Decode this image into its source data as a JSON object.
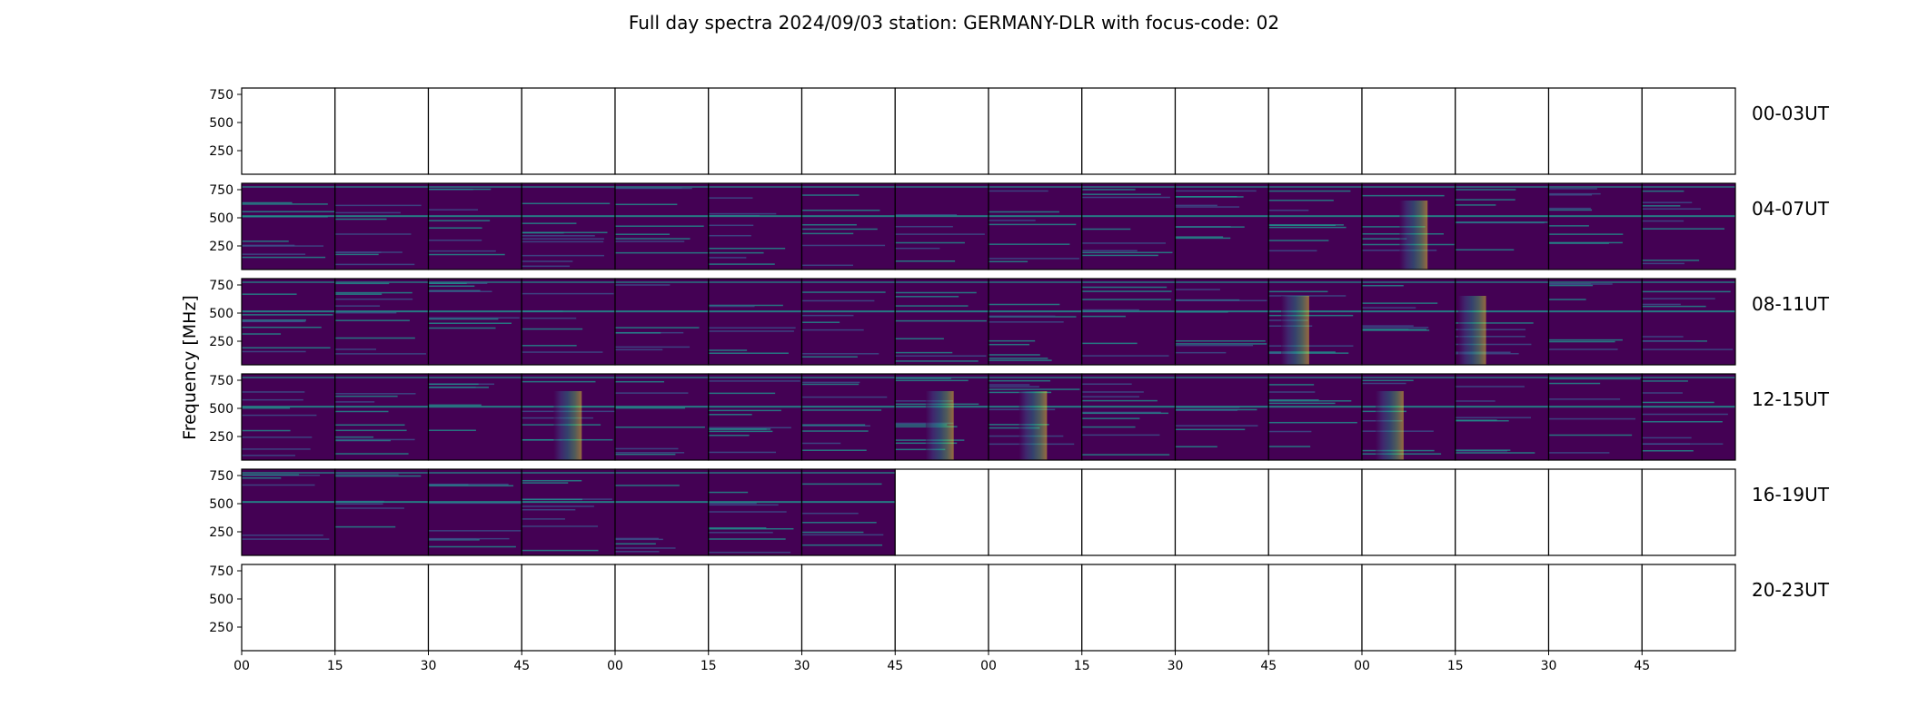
{
  "title": "Full day spectra 2024/09/03 station: GERMANY-DLR with focus-code: 02",
  "chart_data": {
    "type": "heatmap",
    "title": "Full day spectra 2024/09/03 station: GERMANY-DLR with focus-code: 02",
    "ylabel": "Frequency [MHz]",
    "xlabel": "",
    "y_ticks": [
      "750",
      "500",
      "250"
    ],
    "x_ticks": [
      "00",
      "15",
      "30",
      "45",
      "00",
      "15",
      "30",
      "45",
      "00",
      "15",
      "30",
      "45",
      "00",
      "15",
      "30",
      "45"
    ],
    "panels_per_row": 16,
    "colormap": [
      "#440154",
      "#3b528b",
      "#21918c",
      "#5ec962",
      "#fde725"
    ],
    "rows": [
      {
        "label": "00-03UT",
        "filled_panels": 0
      },
      {
        "label": "04-07UT",
        "filled_panels": 16
      },
      {
        "label": "08-11UT",
        "filled_panels": 16
      },
      {
        "label": "12-15UT",
        "filled_panels": 16
      },
      {
        "label": "16-19UT",
        "filled_panels": 7
      },
      {
        "label": "20-23UT",
        "filled_panels": 0
      }
    ]
  }
}
